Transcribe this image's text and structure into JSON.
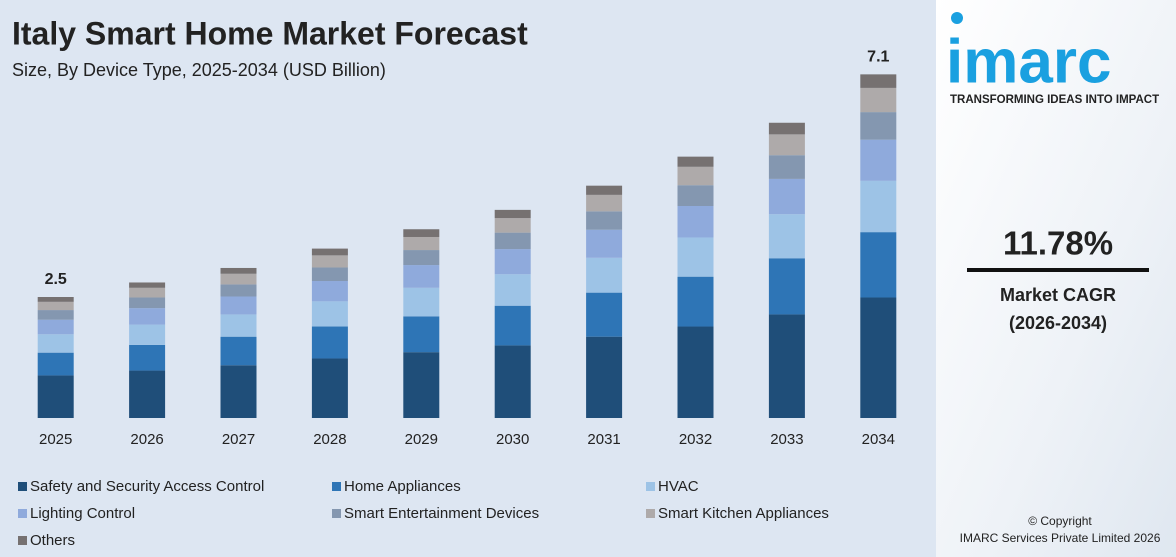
{
  "chart_data": {
    "type": "stacked_bar",
    "title": "Italy Smart Home Market Forecast",
    "subtitle": "Size, By Device Type, 2025-2034 (USD Billion)",
    "categories": [
      "2025",
      "2026",
      "2027",
      "2028",
      "2029",
      "2030",
      "2031",
      "2032",
      "2033",
      "2034"
    ],
    "series": [
      {
        "name": "Safety and Security Access Control",
        "color": "#1f4e79",
        "values": [
          0.88,
          0.98,
          1.09,
          1.23,
          1.36,
          1.5,
          1.68,
          1.89,
          2.14,
          2.49
        ]
      },
      {
        "name": "Home Appliances",
        "color": "#2e75b6",
        "values": [
          0.47,
          0.53,
          0.59,
          0.66,
          0.74,
          0.82,
          0.91,
          1.03,
          1.16,
          1.35
        ]
      },
      {
        "name": "HVAC",
        "color": "#9dc3e6",
        "values": [
          0.38,
          0.42,
          0.46,
          0.52,
          0.59,
          0.65,
          0.72,
          0.81,
          0.91,
          1.06
        ]
      },
      {
        "name": "Lighting Control",
        "color": "#8faadc",
        "values": [
          0.3,
          0.34,
          0.37,
          0.42,
          0.47,
          0.52,
          0.58,
          0.65,
          0.73,
          0.85
        ]
      },
      {
        "name": "Smart Entertainment Devices",
        "color": "#8497b0",
        "values": [
          0.2,
          0.22,
          0.25,
          0.28,
          0.31,
          0.34,
          0.38,
          0.43,
          0.49,
          0.57
        ]
      },
      {
        "name": "Smart Kitchen Appliances",
        "color": "#aeaaaa",
        "values": [
          0.17,
          0.2,
          0.22,
          0.25,
          0.27,
          0.3,
          0.34,
          0.38,
          0.43,
          0.5
        ]
      },
      {
        "name": "Others",
        "color": "#767171",
        "values": [
          0.1,
          0.11,
          0.12,
          0.14,
          0.16,
          0.17,
          0.19,
          0.21,
          0.24,
          0.28
        ]
      }
    ],
    "totals": [
      2.5,
      null,
      null,
      null,
      null,
      null,
      null,
      null,
      null,
      7.1
    ],
    "ylim": [
      0,
      7.5
    ]
  },
  "sidebar": {
    "logo": "imarc",
    "tagline": "TRANSFORMING IDEAS INTO IMPACT",
    "cagr": "11.78%",
    "cagr_label": "Market CAGR",
    "cagr_period": "(2026-2034)",
    "copyright": "© Copyright",
    "company": "IMARC Services Private Limited 2026"
  }
}
